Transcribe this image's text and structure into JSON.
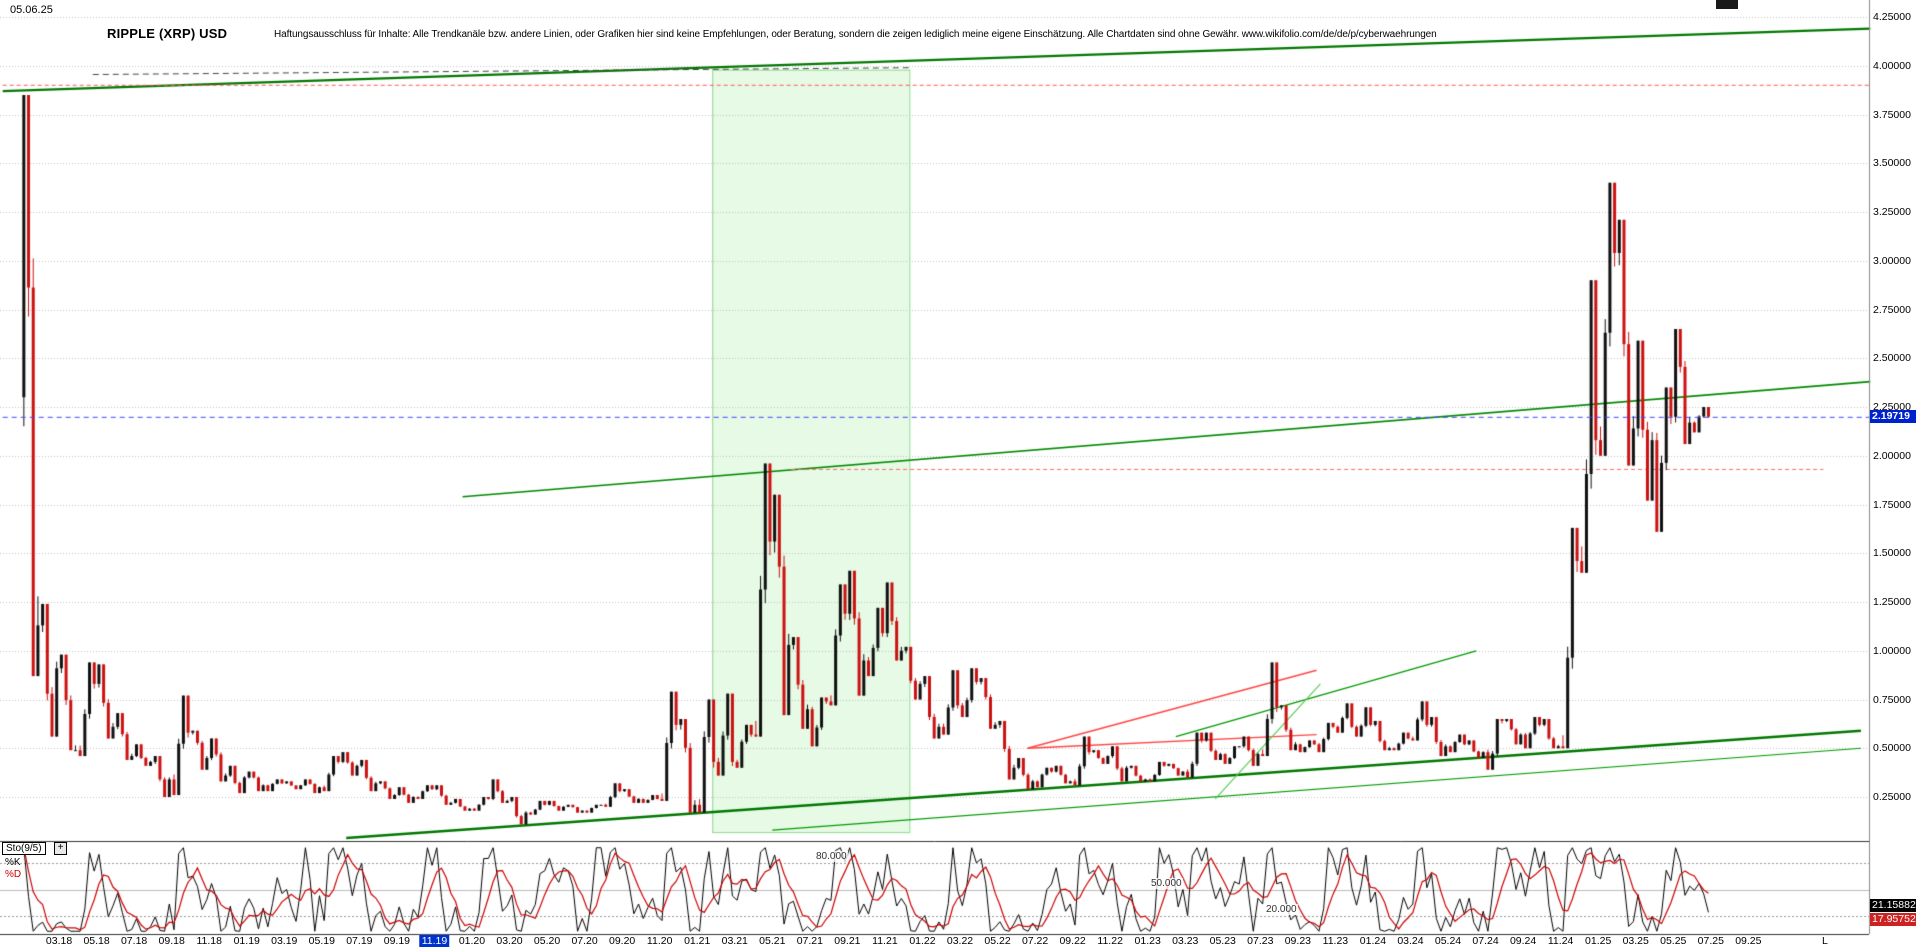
{
  "header": {
    "date": "05.06.25",
    "title": "RIPPLE (XRP) USD",
    "disclaimer": "Haftungsausschluss für Inhalte: Alle Trendkanäle bzw. andere Linien, oder Grafiken hier sind keine Empfehlungen, oder Beratung, sondern die zeigen lediglich meine eigene Einschätzung. Alle Chartdaten sind ohne Gewähr.  www.wikifolio.com/de/de/p/cyberwaehrungen"
  },
  "price_axis": {
    "labels": [
      "4.25000",
      "4.00000",
      "3.75000",
      "3.50000",
      "3.25000",
      "3.00000",
      "2.75000",
      "2.50000",
      "2.25000",
      "2.00000",
      "1.75000",
      "1.50000",
      "1.25000",
      "1.00000",
      "0.75000",
      "0.50000",
      "0.25000"
    ],
    "max": 4.25,
    "min": 0.25,
    "step": 0.25,
    "current_price": 2.19719,
    "current_price_label": "2.19719",
    "badge_color": "#0022cc"
  },
  "x_axis": {
    "labels": [
      "03.18",
      "05.18",
      "07.18",
      "09.18",
      "11.18",
      "01.19",
      "03.19",
      "05.19",
      "07.19",
      "09.19",
      "11.19",
      "01.20",
      "03.20",
      "05.20",
      "07.20",
      "09.20",
      "11.20",
      "01.21",
      "03.21",
      "05.21",
      "07.21",
      "09.21",
      "11.21",
      "01.22",
      "03.22",
      "05.22",
      "07.22",
      "09.22",
      "11.22",
      "01.23",
      "03.23",
      "05.23",
      "07.23",
      "09.23",
      "11.23",
      "01.24",
      "03.24",
      "05.24",
      "07.24",
      "09.24",
      "11.24",
      "01.25",
      "03.25",
      "05.25",
      "07.25",
      "09.25"
    ],
    "start_month_index": 2,
    "step_months": 2,
    "highlight_label": "11.19",
    "extra_label": "L"
  },
  "chart_data": {
    "type": "candlestick",
    "title": "RIPPLE (XRP) USD",
    "timeframe_start": "01.2018",
    "timeframe_end": "06.2025",
    "x_unit": "month",
    "ylim": [
      0.25,
      4.25
    ],
    "current_price": 2.19719,
    "candle_up_color": "#101010",
    "candle_down_color": "#cc1111",
    "candles_monthly_ohlc": [
      [
        2.3,
        3.85,
        0.87,
        1.13
      ],
      [
        1.13,
        1.24,
        0.56,
        0.91
      ],
      [
        0.91,
        0.98,
        0.49,
        0.49
      ],
      [
        0.49,
        0.94,
        0.46,
        0.83
      ],
      [
        0.83,
        0.93,
        0.55,
        0.61
      ],
      [
        0.61,
        0.68,
        0.44,
        0.46
      ],
      [
        0.46,
        0.52,
        0.41,
        0.43
      ],
      [
        0.43,
        0.46,
        0.25,
        0.34
      ],
      [
        0.34,
        0.77,
        0.26,
        0.58
      ],
      [
        0.58,
        0.59,
        0.39,
        0.45
      ],
      [
        0.45,
        0.55,
        0.33,
        0.36
      ],
      [
        0.36,
        0.41,
        0.27,
        0.35
      ],
      [
        0.35,
        0.38,
        0.28,
        0.31
      ],
      [
        0.31,
        0.34,
        0.28,
        0.32
      ],
      [
        0.32,
        0.33,
        0.29,
        0.31
      ],
      [
        0.31,
        0.34,
        0.27,
        0.3
      ],
      [
        0.3,
        0.46,
        0.28,
        0.43
      ],
      [
        0.43,
        0.48,
        0.36,
        0.41
      ],
      [
        0.41,
        0.44,
        0.28,
        0.32
      ],
      [
        0.32,
        0.33,
        0.24,
        0.26
      ],
      [
        0.26,
        0.3,
        0.22,
        0.25
      ],
      [
        0.25,
        0.31,
        0.24,
        0.29
      ],
      [
        0.29,
        0.31,
        0.21,
        0.22
      ],
      [
        0.22,
        0.24,
        0.18,
        0.19
      ],
      [
        0.19,
        0.25,
        0.18,
        0.24
      ],
      [
        0.24,
        0.34,
        0.22,
        0.23
      ],
      [
        0.23,
        0.25,
        0.11,
        0.17
      ],
      [
        0.17,
        0.23,
        0.16,
        0.21
      ],
      [
        0.21,
        0.23,
        0.18,
        0.2
      ],
      [
        0.2,
        0.21,
        0.17,
        0.18
      ],
      [
        0.18,
        0.21,
        0.17,
        0.21
      ],
      [
        0.21,
        0.32,
        0.2,
        0.28
      ],
      [
        0.28,
        0.29,
        0.22,
        0.24
      ],
      [
        0.24,
        0.26,
        0.22,
        0.24
      ],
      [
        0.24,
        0.79,
        0.23,
        0.62
      ],
      [
        0.62,
        0.65,
        0.17,
        0.21
      ],
      [
        0.21,
        0.75,
        0.17,
        0.43
      ],
      [
        0.43,
        0.78,
        0.36,
        0.43
      ],
      [
        0.43,
        0.62,
        0.4,
        0.57
      ],
      [
        0.57,
        1.96,
        0.56,
        1.56
      ],
      [
        1.56,
        1.8,
        0.67,
        1.03
      ],
      [
        1.03,
        1.07,
        0.6,
        0.7
      ],
      [
        0.7,
        0.76,
        0.51,
        0.74
      ],
      [
        0.74,
        1.34,
        0.72,
        1.19
      ],
      [
        1.19,
        1.41,
        0.77,
        0.95
      ],
      [
        0.95,
        1.22,
        0.87,
        1.09
      ],
      [
        1.09,
        1.35,
        0.95,
        1.0
      ],
      [
        1.0,
        1.02,
        0.75,
        0.83
      ],
      [
        0.83,
        0.87,
        0.55,
        0.61
      ],
      [
        0.61,
        0.9,
        0.57,
        0.72
      ],
      [
        0.72,
        0.91,
        0.66,
        0.84
      ],
      [
        0.84,
        0.86,
        0.6,
        0.62
      ],
      [
        0.62,
        0.64,
        0.34,
        0.4
      ],
      [
        0.4,
        0.45,
        0.29,
        0.33
      ],
      [
        0.33,
        0.4,
        0.3,
        0.38
      ],
      [
        0.38,
        0.41,
        0.32,
        0.33
      ],
      [
        0.33,
        0.56,
        0.31,
        0.48
      ],
      [
        0.48,
        0.49,
        0.42,
        0.46
      ],
      [
        0.46,
        0.51,
        0.33,
        0.4
      ],
      [
        0.4,
        0.41,
        0.33,
        0.34
      ],
      [
        0.34,
        0.43,
        0.33,
        0.41
      ],
      [
        0.41,
        0.42,
        0.36,
        0.38
      ],
      [
        0.38,
        0.58,
        0.35,
        0.54
      ],
      [
        0.54,
        0.58,
        0.44,
        0.47
      ],
      [
        0.47,
        0.51,
        0.42,
        0.51
      ],
      [
        0.51,
        0.56,
        0.41,
        0.47
      ],
      [
        0.47,
        0.94,
        0.46,
        0.71
      ],
      [
        0.71,
        0.72,
        0.49,
        0.52
      ],
      [
        0.52,
        0.54,
        0.48,
        0.52
      ],
      [
        0.52,
        0.63,
        0.48,
        0.61
      ],
      [
        0.61,
        0.73,
        0.58,
        0.61
      ],
      [
        0.61,
        0.71,
        0.56,
        0.62
      ],
      [
        0.62,
        0.64,
        0.49,
        0.5
      ],
      [
        0.5,
        0.58,
        0.49,
        0.55
      ],
      [
        0.55,
        0.74,
        0.54,
        0.62
      ],
      [
        0.62,
        0.66,
        0.46,
        0.51
      ],
      [
        0.51,
        0.57,
        0.48,
        0.52
      ],
      [
        0.52,
        0.54,
        0.45,
        0.48
      ],
      [
        0.48,
        0.65,
        0.39,
        0.64
      ],
      [
        0.64,
        0.65,
        0.52,
        0.57
      ],
      [
        0.57,
        0.66,
        0.5,
        0.62
      ],
      [
        0.62,
        0.65,
        0.5,
        0.51
      ],
      [
        0.51,
        1.63,
        0.5,
        1.46
      ],
      [
        1.46,
        2.9,
        1.4,
        2.08
      ],
      [
        2.08,
        3.4,
        2.0,
        3.04
      ],
      [
        3.04,
        3.21,
        1.95,
        2.14
      ],
      [
        2.14,
        2.59,
        1.77,
        2.08
      ],
      [
        2.08,
        2.35,
        1.61,
        2.2
      ],
      [
        2.2,
        2.65,
        2.06,
        2.17
      ],
      [
        2.17,
        2.25,
        2.12,
        2.2
      ]
    ],
    "overlays": {
      "green_region": {
        "m1": 36.8,
        "m2": 47.3,
        "p_top": 3.98,
        "p_bottom": 0.07,
        "fill": "rgba(200,245,200,0.45)",
        "border": "#8cd98c"
      },
      "lines": [
        {
          "m1": -1,
          "p1": 3.87,
          "m2": 98.5,
          "p2": 4.19,
          "color": "#007700",
          "w": 2.2
        },
        {
          "m1": -1,
          "p1": 3.9,
          "m2": 98.5,
          "p2": 3.9,
          "color": "#ff5555",
          "w": 1,
          "dash": [
            4,
            3
          ]
        },
        {
          "m1": 3.8,
          "p1": 3.955,
          "m2": 47.4,
          "p2": 3.99,
          "color": "#444444",
          "w": 1,
          "dash": [
            6,
            4
          ]
        },
        {
          "m1": 23.5,
          "p1": 1.79,
          "m2": 98.5,
          "p2": 2.38,
          "color": "#008800",
          "w": 1.6
        },
        {
          "m1": 41,
          "p1": 1.93,
          "m2": 96,
          "p2": 1.93,
          "color": "#ff6666",
          "w": 1,
          "dash": [
            4,
            3
          ]
        },
        {
          "m1": -1,
          "p1": 2.19719,
          "m2": 98.5,
          "p2": 2.19719,
          "color": "#4444ff",
          "w": 1,
          "dash": [
            5,
            4
          ],
          "top": true
        },
        {
          "m1": 17.3,
          "p1": 0.04,
          "m2": 98,
          "p2": 0.59,
          "color": "#007700",
          "w": 2.4
        },
        {
          "m1": 40,
          "p1": 0.08,
          "m2": 98,
          "p2": 0.5,
          "color": "#009900",
          "w": 1.2
        },
        {
          "m1": 61.5,
          "p1": 0.56,
          "m2": 77.5,
          "p2": 1.0,
          "color": "#009900",
          "w": 1.3
        },
        {
          "m1": 53.6,
          "p1": 0.5,
          "m2": 69,
          "p2": 0.9,
          "color": "#ff4444",
          "w": 1.3
        },
        {
          "m1": 53.6,
          "p1": 0.5,
          "m2": 69,
          "p2": 0.57,
          "color": "#ff4444",
          "w": 1.3
        },
        {
          "m1": 63.6,
          "p1": 0.24,
          "m2": 69.2,
          "p2": 0.83,
          "color": "#55cc55",
          "w": 1.2
        }
      ]
    },
    "indicator": {
      "name": "Sto(9/5)",
      "k_period": 9,
      "d_period": 5,
      "levels": [
        80,
        50,
        20
      ],
      "k_last": 21.15882,
      "d_last": 17.95752
    }
  },
  "stochastic": {
    "label": "Sto(9/5)",
    "add_button": "+",
    "k_label": "%K",
    "d_label": "%D",
    "k_color": "#000000",
    "d_color": "#cc0000",
    "k_value": "21.15882",
    "d_value": "17.95752",
    "grid_labels": [
      {
        "text": "80.000",
        "level": 80,
        "x": 815
      },
      {
        "text": "50.000",
        "level": 50,
        "x": 1150
      },
      {
        "text": "20.000",
        "level": 20,
        "x": 1265
      }
    ]
  }
}
